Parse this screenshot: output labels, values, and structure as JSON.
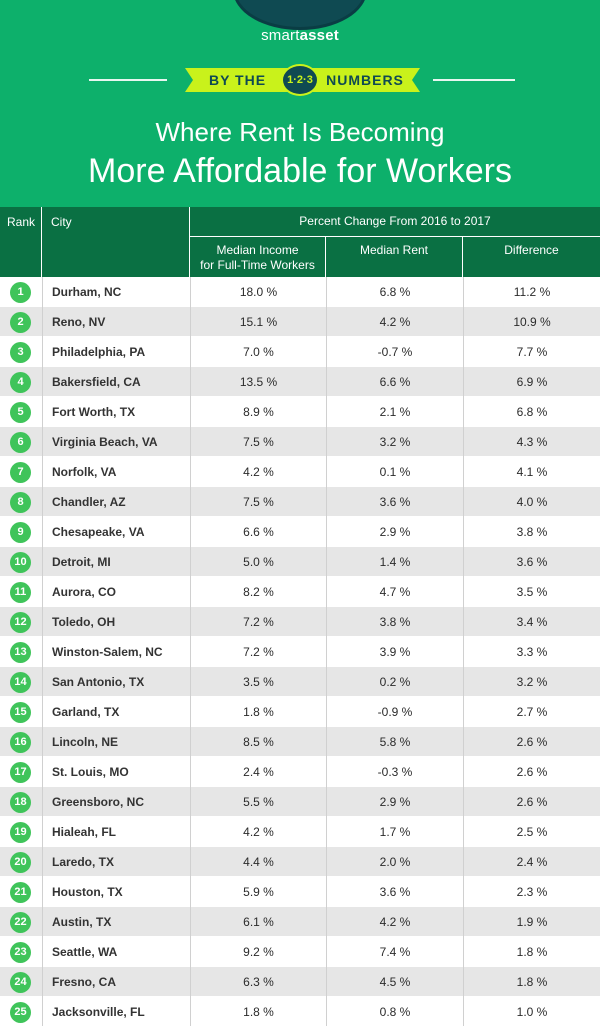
{
  "brand": {
    "logo_smart": "smart",
    "logo_asset": "asset"
  },
  "banner": {
    "left_text": "BY THE",
    "badge_text": "1·2·3",
    "right_text": "NUMBERS"
  },
  "title": {
    "line1": "Where Rent Is Becoming",
    "line2": "More Affordable for Workers"
  },
  "colors": {
    "header_bg": "#0db06b",
    "table_header_bg": "#0a7043",
    "rank_badge": "#3fc45a",
    "ribbon": "#c9f21b",
    "logo_bg": "#0f4a52"
  },
  "table": {
    "headers": {
      "rank": "Rank",
      "city": "City",
      "group": "Percent Change From 2016 to 2017",
      "income_line1": "Median Income",
      "income_line2": "for Full-Time Workers",
      "rent": "Median Rent",
      "difference": "Difference"
    },
    "rows": [
      {
        "rank": "1",
        "city": "Durham, NC",
        "income": "18.0 %",
        "rent": "6.8 %",
        "difference": "11.2 %"
      },
      {
        "rank": "2",
        "city": "Reno, NV",
        "income": "15.1 %",
        "rent": "4.2 %",
        "difference": "10.9 %"
      },
      {
        "rank": "3",
        "city": "Philadelphia, PA",
        "income": "7.0 %",
        "rent": "-0.7 %",
        "difference": "7.7 %"
      },
      {
        "rank": "4",
        "city": "Bakersfield, CA",
        "income": "13.5 %",
        "rent": "6.6 %",
        "difference": "6.9 %"
      },
      {
        "rank": "5",
        "city": "Fort Worth, TX",
        "income": "8.9 %",
        "rent": "2.1 %",
        "difference": "6.8 %"
      },
      {
        "rank": "6",
        "city": "Virginia Beach, VA",
        "income": "7.5 %",
        "rent": "3.2 %",
        "difference": "4.3 %"
      },
      {
        "rank": "7",
        "city": "Norfolk, VA",
        "income": "4.2 %",
        "rent": "0.1 %",
        "difference": "4.1 %"
      },
      {
        "rank": "8",
        "city": "Chandler, AZ",
        "income": "7.5 %",
        "rent": "3.6 %",
        "difference": "4.0 %"
      },
      {
        "rank": "9",
        "city": "Chesapeake, VA",
        "income": "6.6 %",
        "rent": "2.9 %",
        "difference": "3.8 %"
      },
      {
        "rank": "10",
        "city": "Detroit, MI",
        "income": "5.0 %",
        "rent": "1.4 %",
        "difference": "3.6 %"
      },
      {
        "rank": "11",
        "city": "Aurora, CO",
        "income": "8.2 %",
        "rent": "4.7 %",
        "difference": "3.5 %"
      },
      {
        "rank": "12",
        "city": "Toledo, OH",
        "income": "7.2 %",
        "rent": "3.8 %",
        "difference": "3.4 %"
      },
      {
        "rank": "13",
        "city": "Winston-Salem, NC",
        "income": "7.2 %",
        "rent": "3.9 %",
        "difference": "3.3 %"
      },
      {
        "rank": "14",
        "city": "San Antonio, TX",
        "income": "3.5 %",
        "rent": "0.2 %",
        "difference": "3.2 %"
      },
      {
        "rank": "15",
        "city": "Garland, TX",
        "income": "1.8 %",
        "rent": "-0.9 %",
        "difference": "2.7 %"
      },
      {
        "rank": "16",
        "city": "Lincoln, NE",
        "income": "8.5 %",
        "rent": "5.8 %",
        "difference": "2.6 %"
      },
      {
        "rank": "17",
        "city": "St. Louis, MO",
        "income": "2.4 %",
        "rent": "-0.3 %",
        "difference": "2.6 %"
      },
      {
        "rank": "18",
        "city": "Greensboro, NC",
        "income": "5.5 %",
        "rent": "2.9 %",
        "difference": "2.6 %"
      },
      {
        "rank": "19",
        "city": "Hialeah, FL",
        "income": "4.2 %",
        "rent": "1.7 %",
        "difference": "2.5 %"
      },
      {
        "rank": "20",
        "city": "Laredo, TX",
        "income": "4.4 %",
        "rent": "2.0 %",
        "difference": "2.4 %"
      },
      {
        "rank": "21",
        "city": "Houston, TX",
        "income": "5.9 %",
        "rent": "3.6 %",
        "difference": "2.3 %"
      },
      {
        "rank": "22",
        "city": "Austin, TX",
        "income": "6.1 %",
        "rent": "4.2 %",
        "difference": "1.9 %"
      },
      {
        "rank": "23",
        "city": "Seattle, WA",
        "income": "9.2 %",
        "rent": "7.4 %",
        "difference": "1.8 %"
      },
      {
        "rank": "24",
        "city": "Fresno, CA",
        "income": "6.3 %",
        "rent": "4.5 %",
        "difference": "1.8 %"
      },
      {
        "rank": "25",
        "city": "Jacksonville, FL",
        "income": "1.8 %",
        "rent": "0.8 %",
        "difference": "1.0 %"
      }
    ]
  }
}
